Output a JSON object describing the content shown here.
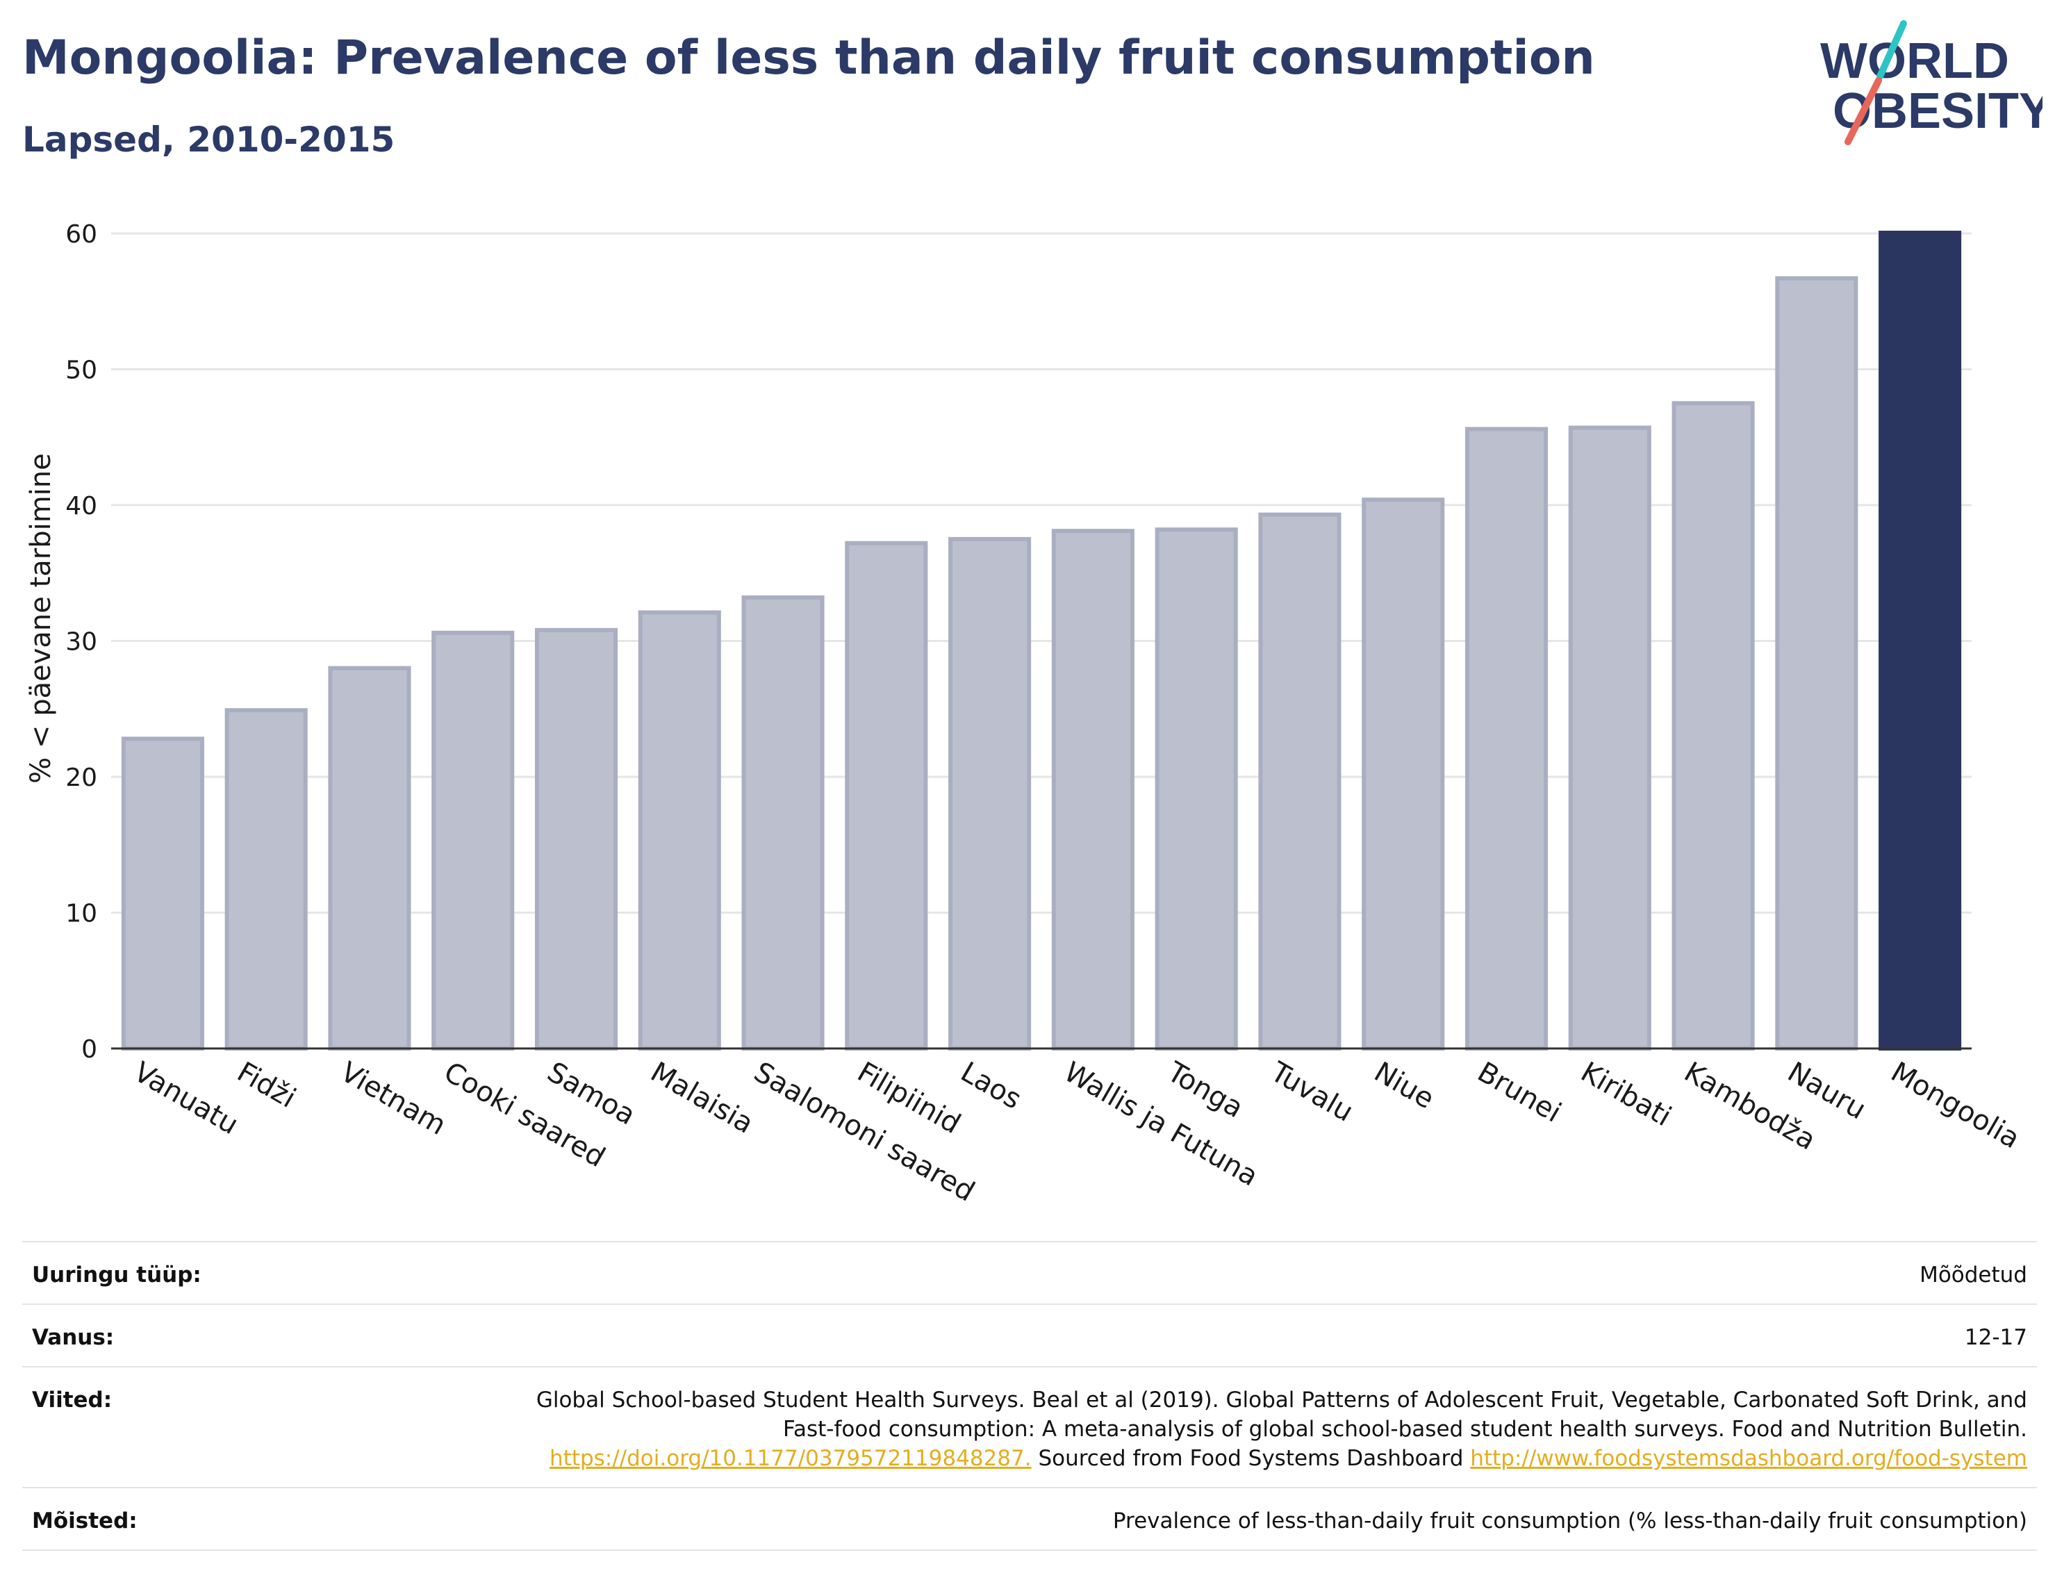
{
  "header": {
    "title": "Mongoolia: Prevalence of less than daily fruit consumption",
    "subtitle": "Lapsed, 2010-2015"
  },
  "logo": {
    "line1": "WORLD",
    "line2": "OBESITY",
    "colors": {
      "text": "#2b3a67",
      "accent_teal": "#2ec4c4",
      "accent_red": "#e8665a"
    }
  },
  "chart_data": {
    "type": "bar",
    "title": "",
    "xlabel": "",
    "ylabel": "% < päevane tarbimine",
    "ylim": [
      0,
      60
    ],
    "yticks": [
      0,
      10,
      20,
      30,
      40,
      50,
      60
    ],
    "grid": true,
    "highlight": "Mongoolia",
    "colors": {
      "bar": "#bcc0ce",
      "bar_edge": "#a9aec0",
      "highlight": "#2b3660",
      "grid": "#e6e6e6",
      "axis": "#333333"
    },
    "categories": [
      "Vanuatu",
      "Fidži",
      "Vietnam",
      "Cooki saared",
      "Samoa",
      "Malaisia",
      "Saalomoni saared",
      "Filipiinid",
      "Laos",
      "Wallis ja Futuna",
      "Tonga",
      "Tuvalu",
      "Niue",
      "Brunei",
      "Kiribati",
      "Kambodža",
      "Nauru",
      "Mongoolia"
    ],
    "values": [
      22.8,
      24.9,
      28.0,
      30.6,
      30.8,
      32.1,
      33.2,
      37.2,
      37.5,
      38.1,
      38.2,
      39.3,
      40.4,
      45.6,
      45.7,
      47.5,
      56.7,
      60.1
    ]
  },
  "info": {
    "survey_type": {
      "label": "Uuringu tüüp:",
      "value": "Mõõdetud"
    },
    "age": {
      "label": "Vanus:",
      "value": "12-17"
    },
    "references": {
      "label": "Viited:",
      "text1": "Global School-based Student Health Surveys. Beal et al (2019). Global Patterns of Adolescent Fruit, Vegetable, Carbonated Soft Drink, and Fast-food consumption: A meta-analysis of global school-based student health surveys. Food and Nutrition Bulletin.",
      "link1": "https://doi.org/10.1177/0379572119848287.",
      "text2": "Sourced from Food Systems Dashboard",
      "link2": "http://www.foodsystemsdashboard.org/food-system"
    },
    "definitions": {
      "label": "Mõisted:",
      "value": "Prevalence of less-than-daily fruit consumption (% less-than-daily fruit consumption)"
    }
  }
}
